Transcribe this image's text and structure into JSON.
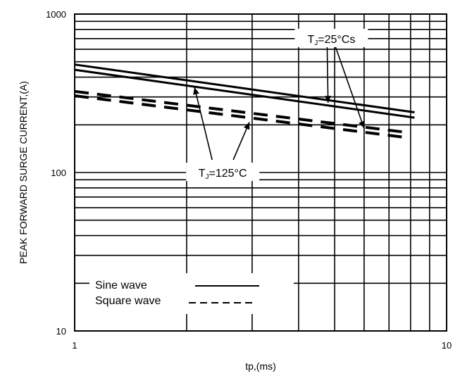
{
  "chart_data": {
    "type": "line",
    "xlabel": "tp,(ms)",
    "ylabel": "PEAK FORWARD SURGE CURRENT,(A)",
    "xscale": "log",
    "yscale": "log",
    "xlim": [
      1,
      10
    ],
    "ylim": [
      10,
      1000
    ],
    "x_ticks": [
      {
        "value": 1,
        "label": "1"
      },
      {
        "value": 10,
        "label": "10"
      }
    ],
    "y_ticks": [
      {
        "value": 10,
        "label": "10"
      },
      {
        "value": 100,
        "label": "100"
      },
      {
        "value": 1000,
        "label": "1000"
      }
    ],
    "grid": true,
    "series": [
      {
        "group": "sine",
        "style": "solid",
        "x": [
          1,
          8.2
        ],
        "y": [
          480,
          240
        ]
      },
      {
        "group": "sine",
        "style": "solid",
        "x": [
          1,
          8.2
        ],
        "y": [
          445,
          222
        ]
      },
      {
        "group": "square",
        "style": "dashed",
        "x": [
          1,
          8.0
        ],
        "y": [
          325,
          178
        ]
      },
      {
        "group": "square",
        "style": "dashed",
        "x": [
          1,
          8.0
        ],
        "y": [
          305,
          165
        ]
      }
    ],
    "annotations": [
      {
        "id": "tj25",
        "main": "T",
        "sub": "J",
        "rest": "=25°Cs",
        "label_x": 4.9,
        "label_y": 700,
        "arrow_targets": [
          [
            4.8,
            275
          ],
          [
            6.0,
            190
          ]
        ]
      },
      {
        "id": "tj125",
        "main": "T",
        "sub": "J",
        "rest": "=125°C",
        "label_x": 2.5,
        "label_y": 100,
        "arrow_targets": [
          [
            2.1,
            345
          ],
          [
            2.95,
            208
          ]
        ]
      }
    ],
    "legend": {
      "position": "bottom-left",
      "items": [
        {
          "label": "Sine wave",
          "style": "solid"
        },
        {
          "label": "Square wave",
          "style": "dashed"
        }
      ]
    }
  }
}
